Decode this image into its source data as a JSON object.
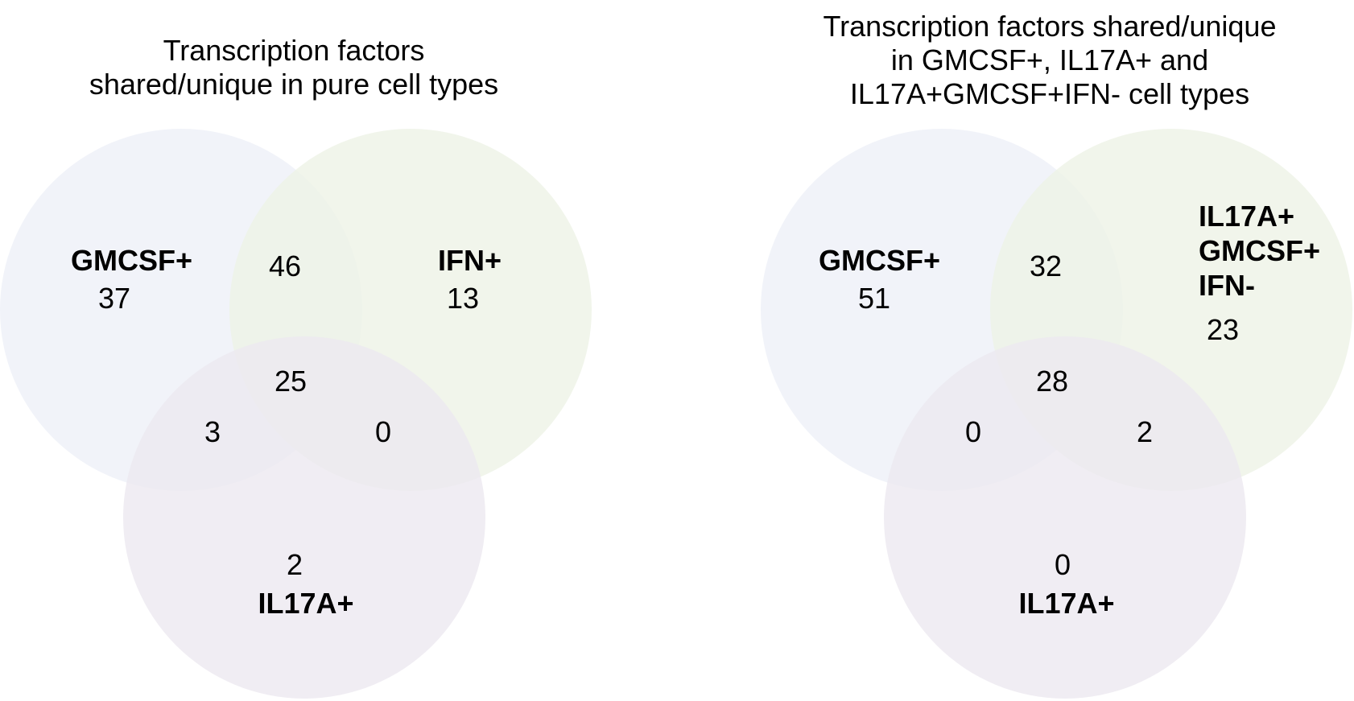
{
  "diagrams": [
    {
      "title_lines": [
        "Transcription factors",
        "shared/unique in pure cell types"
      ],
      "sets": {
        "a": {
          "label_lines": [
            "GMCSF+"
          ],
          "color": "#eef0f8"
        },
        "b": {
          "label_lines": [
            "IFN+"
          ],
          "color": "#eef3e6"
        },
        "c": {
          "label_lines": [
            "IL17A+"
          ],
          "color": "#ece8f0"
        }
      },
      "regions": {
        "a_only": "37",
        "b_only": "13",
        "c_only": "2",
        "ab": "46",
        "ac": "3",
        "bc": "0",
        "abc": "25"
      }
    },
    {
      "title_lines": [
        "Transcription factors shared/unique",
        "in GMCSF+, IL17A+ and",
        "IL17A+GMCSF+IFN- cell types"
      ],
      "sets": {
        "a": {
          "label_lines": [
            "GMCSF+"
          ],
          "color": "#eef0f8"
        },
        "b": {
          "label_lines": [
            "IL17A+",
            "GMCSF+",
            "IFN-"
          ],
          "color": "#eef3e6"
        },
        "c": {
          "label_lines": [
            "IL17A+"
          ],
          "color": "#ece8f0"
        }
      },
      "regions": {
        "a_only": "51",
        "b_only": "23",
        "c_only": "0",
        "ab": "32",
        "ac": "0",
        "bc": "2",
        "abc": "28"
      }
    }
  ]
}
